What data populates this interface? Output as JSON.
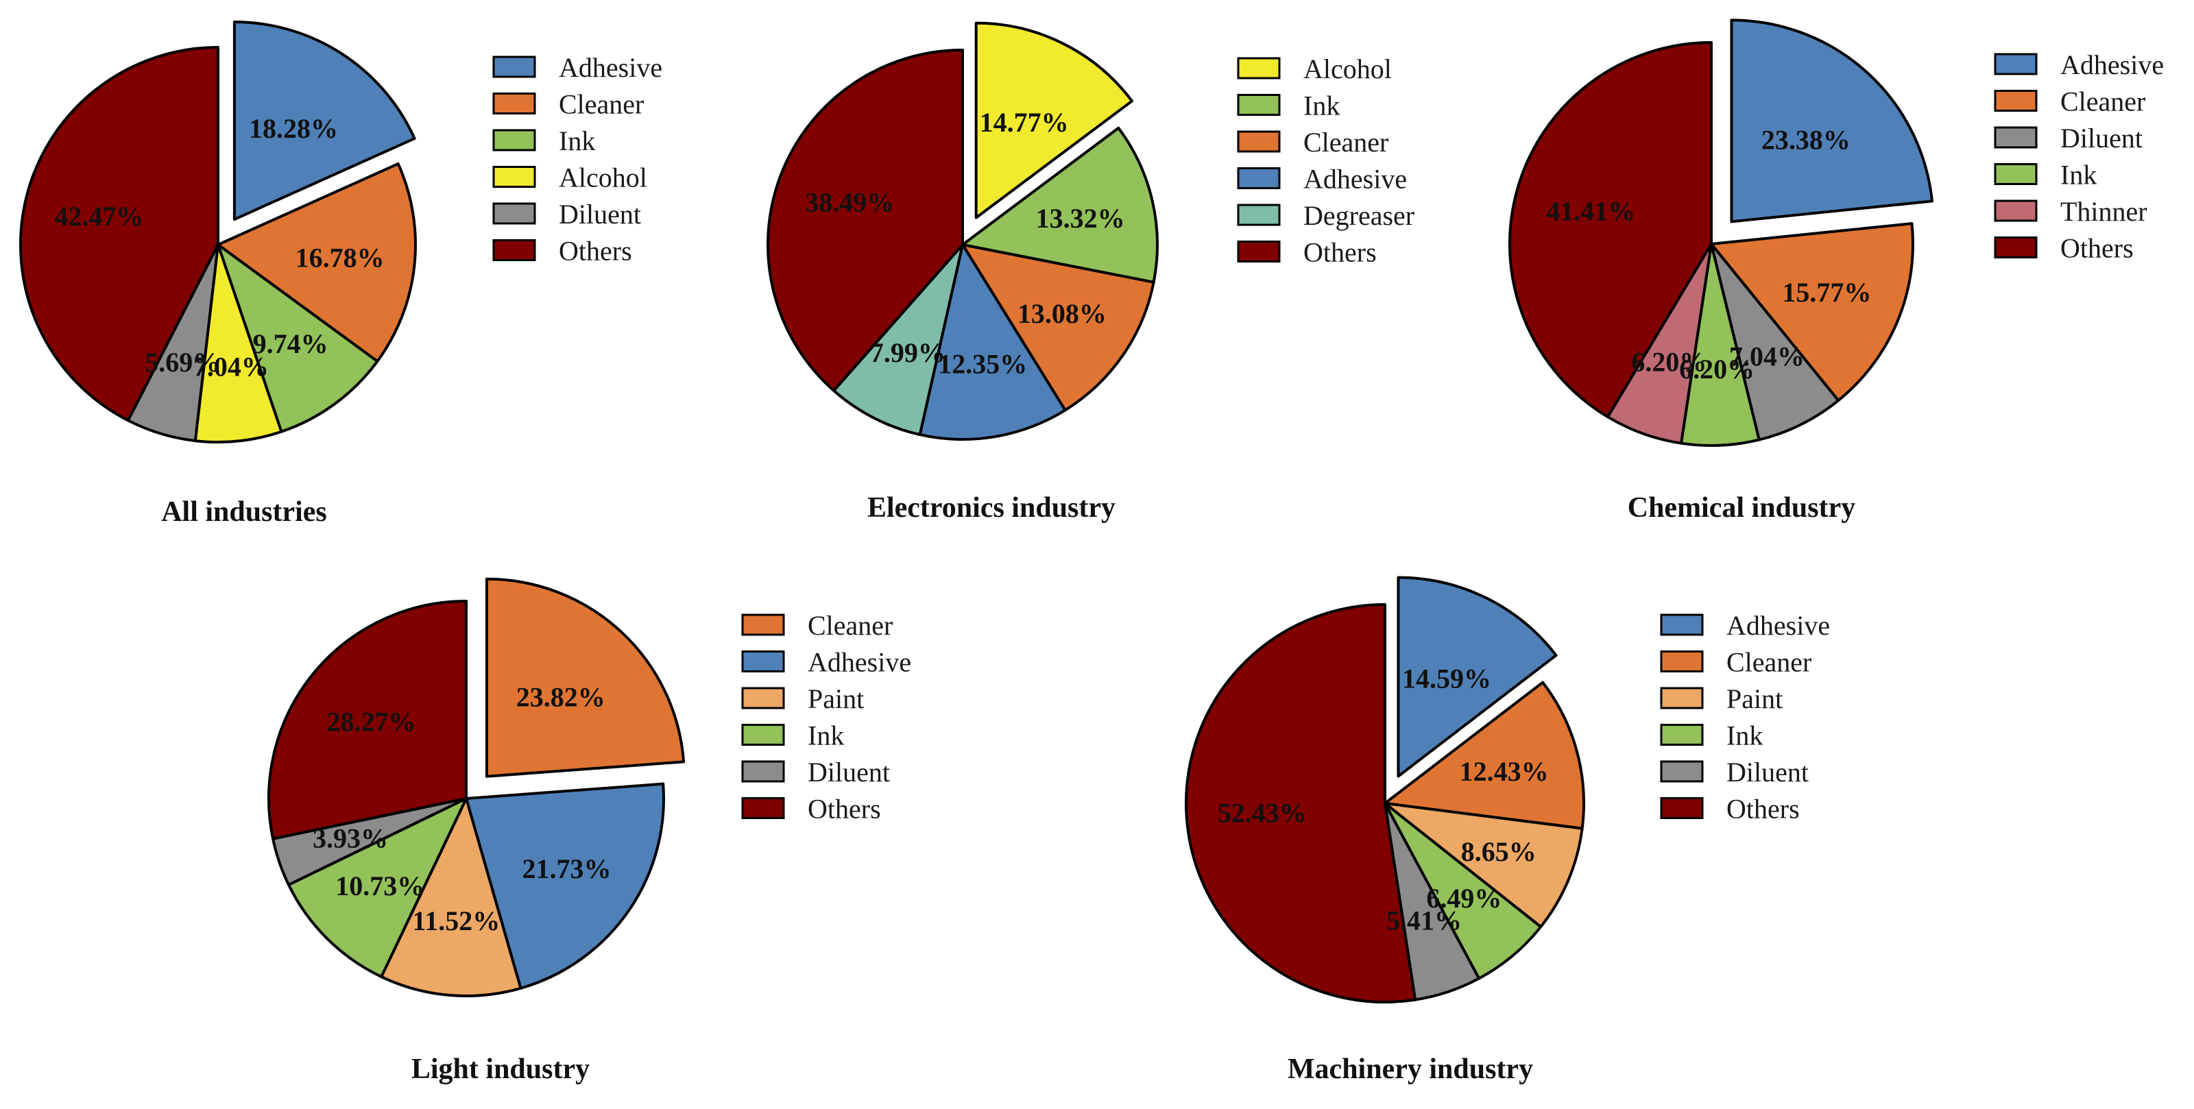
{
  "colors": {
    "Adhesive": "#4f81b8",
    "Cleaner": "#e07533",
    "Ink": "#93c15a",
    "Alcohol": "#f2ea2c",
    "Diluent": "#8c8c8c",
    "Others": "#800000",
    "Degreaser": "#7fbdaa",
    "Thinner": "#c06a74",
    "Paint": "#eea865"
  },
  "chart_data": [
    {
      "type": "pie",
      "title": "All industries",
      "legend": [
        "Adhesive",
        "Cleaner",
        "Ink",
        "Alcohol",
        "Diluent",
        "Others"
      ],
      "slices": [
        {
          "label": "Adhesive",
          "value": 18.28,
          "text": "18.28%",
          "exploded": true
        },
        {
          "label": "Cleaner",
          "value": 16.78,
          "text": "16.78%"
        },
        {
          "label": "Ink",
          "value": 9.74,
          "text": "9.74%"
        },
        {
          "label": "Alcohol",
          "value": 7.04,
          "text": "7.04%"
        },
        {
          "label": "Diluent",
          "value": 5.69,
          "text": "5.69%"
        },
        {
          "label": "Others",
          "value": 42.47,
          "text": "42.47%"
        }
      ]
    },
    {
      "type": "pie",
      "title": "Electronics industry",
      "legend": [
        "Alcohol",
        "Ink",
        "Cleaner",
        "Adhesive",
        "Degreaser",
        "Others"
      ],
      "slices": [
        {
          "label": "Alcohol",
          "value": 14.77,
          "text": "14.77%",
          "exploded": true
        },
        {
          "label": "Ink",
          "value": 13.32,
          "text": "13.32%"
        },
        {
          "label": "Cleaner",
          "value": 13.08,
          "text": "13.08%"
        },
        {
          "label": "Adhesive",
          "value": 12.35,
          "text": "12.35%"
        },
        {
          "label": "Degreaser",
          "value": 7.99,
          "text": "7.99%"
        },
        {
          "label": "Others",
          "value": 38.49,
          "text": "38.49%"
        }
      ]
    },
    {
      "type": "pie",
      "title": "Chemical industry",
      "legend": [
        "Adhesive",
        "Cleaner",
        "Diluent",
        "Ink",
        "Thinner",
        "Others"
      ],
      "slices": [
        {
          "label": "Adhesive",
          "value": 23.38,
          "text": "23.38%",
          "exploded": true
        },
        {
          "label": "Cleaner",
          "value": 15.77,
          "text": "15.77%"
        },
        {
          "label": "Diluent",
          "value": 7.04,
          "text": "7.04%"
        },
        {
          "label": "Ink",
          "value": 6.2,
          "text": "6.20%"
        },
        {
          "label": "Thinner",
          "value": 6.2,
          "text": "6.20%"
        },
        {
          "label": "Others",
          "value": 41.41,
          "text": "41.41%"
        }
      ]
    },
    {
      "type": "pie",
      "title": "Light industry",
      "legend": [
        "Cleaner",
        "Adhesive",
        "Paint",
        "Ink",
        "Diluent",
        "Others"
      ],
      "slices": [
        {
          "label": "Cleaner",
          "value": 23.82,
          "text": "23.82%",
          "exploded": true
        },
        {
          "label": "Adhesive",
          "value": 21.73,
          "text": "21.73%"
        },
        {
          "label": "Paint",
          "value": 11.52,
          "text": "11.52%"
        },
        {
          "label": "Ink",
          "value": 10.73,
          "text": "10.73%"
        },
        {
          "label": "Diluent",
          "value": 3.93,
          "text": "3.93%"
        },
        {
          "label": "Others",
          "value": 28.27,
          "text": "28.27%"
        }
      ]
    },
    {
      "type": "pie",
      "title": "Machinery industry",
      "legend": [
        "Adhesive",
        "Cleaner",
        "Paint",
        "Ink",
        "Diluent",
        "Others"
      ],
      "slices": [
        {
          "label": "Adhesive",
          "value": 14.59,
          "text": "14.59%",
          "exploded": true
        },
        {
          "label": "Cleaner",
          "value": 12.43,
          "text": "12.43%"
        },
        {
          "label": "Paint",
          "value": 8.65,
          "text": "8.65%"
        },
        {
          "label": "Ink",
          "value": 6.49,
          "text": "6.49%"
        },
        {
          "label": "Diluent",
          "value": 5.41,
          "text": "5.41%"
        },
        {
          "label": "Others",
          "value": 52.43,
          "text": "52.43%"
        }
      ]
    }
  ]
}
